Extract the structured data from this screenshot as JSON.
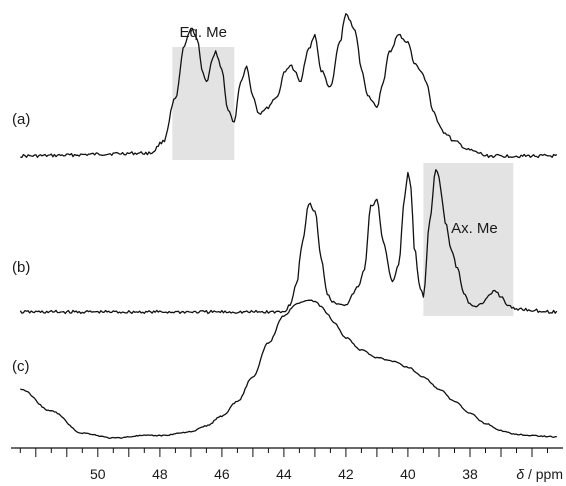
{
  "chart_data": {
    "type": "line",
    "title": "",
    "xlabel": "δ / ppm",
    "xlabel_symbol": "δ",
    "xlabel_unit": "/ ppm",
    "x_reversed": true,
    "xlim": [
      52.8,
      35.0
    ],
    "x_tick_labels": [
      "50",
      "48",
      "46",
      "44",
      "42",
      "40",
      "38"
    ],
    "x_tick_values": [
      50,
      48,
      46,
      44,
      42,
      40,
      38
    ],
    "minor_tick_step": 0.5,
    "grid": false,
    "y_axis_shown": false,
    "colors": {
      "trace": "#111111",
      "highlight": "#e3e3e3",
      "text": "#1a1a1a"
    },
    "highlight_regions": [
      {
        "label": "Eq. Me",
        "x_range": [
          47.6,
          45.6
        ],
        "panel": "a"
      },
      {
        "label": "Ax. Me",
        "x_range": [
          39.5,
          36.6
        ],
        "panel": "b"
      }
    ],
    "series": [
      {
        "name": "(a)",
        "x": [
          52.5,
          48.3,
          47.9,
          47.5,
          47.2,
          47.0,
          46.8,
          46.6,
          46.5,
          46.3,
          46.2,
          46.0,
          45.8,
          45.6,
          45.4,
          45.2,
          45.0,
          44.8,
          44.6,
          44.2,
          44.0,
          43.8,
          43.6,
          43.5,
          43.2,
          43.0,
          42.8,
          42.5,
          42.2,
          42.0,
          41.7,
          41.5,
          41.3,
          41.0,
          40.8,
          40.6,
          40.3,
          40.0,
          39.8,
          39.6,
          39.4,
          39.2,
          39.0,
          38.8,
          38.5,
          38.0,
          37.7,
          37.5,
          37.0,
          35.2
        ],
        "y": [
          0.0,
          0.02,
          0.1,
          0.4,
          0.78,
          0.9,
          0.82,
          0.58,
          0.52,
          0.68,
          0.73,
          0.6,
          0.32,
          0.24,
          0.52,
          0.63,
          0.42,
          0.3,
          0.33,
          0.42,
          0.58,
          0.64,
          0.58,
          0.52,
          0.75,
          0.85,
          0.6,
          0.48,
          0.8,
          1.0,
          0.88,
          0.62,
          0.42,
          0.35,
          0.52,
          0.73,
          0.85,
          0.8,
          0.66,
          0.6,
          0.52,
          0.32,
          0.22,
          0.16,
          0.1,
          0.04,
          0.02,
          0.0,
          0.0,
          0.0
        ]
      },
      {
        "name": "(b)",
        "x": [
          52.5,
          44.0,
          43.8,
          43.6,
          43.4,
          43.2,
          43.0,
          42.8,
          42.6,
          42.4,
          42.0,
          41.6,
          41.4,
          41.2,
          41.0,
          40.8,
          40.5,
          40.3,
          40.1,
          40.0,
          39.9,
          39.8,
          39.6,
          39.5,
          39.3,
          39.1,
          39.0,
          38.9,
          38.8,
          38.6,
          38.4,
          38.2,
          38.0,
          37.8,
          37.6,
          37.4,
          37.2,
          37.0,
          36.8,
          36.6,
          35.2
        ],
        "y": [
          0.0,
          0.0,
          0.05,
          0.18,
          0.45,
          0.7,
          0.65,
          0.35,
          0.12,
          0.06,
          0.05,
          0.16,
          0.28,
          0.68,
          0.72,
          0.45,
          0.2,
          0.3,
          0.75,
          0.9,
          0.8,
          0.42,
          0.15,
          0.1,
          0.58,
          0.92,
          0.88,
          0.72,
          0.58,
          0.4,
          0.28,
          0.12,
          0.05,
          0.04,
          0.05,
          0.1,
          0.14,
          0.1,
          0.05,
          0.02,
          0.0
        ]
      },
      {
        "name": "(c)",
        "x": [
          52.5,
          51.5,
          50.5,
          49.5,
          48.5,
          48.0,
          47.0,
          46.5,
          46.0,
          45.5,
          45.0,
          44.5,
          44.0,
          43.6,
          43.4,
          43.2,
          43.0,
          42.8,
          42.6,
          42.4,
          42.0,
          41.5,
          41.0,
          40.5,
          40.0,
          39.5,
          39.0,
          38.5,
          38.0,
          37.5,
          37.0,
          36.5,
          36.0,
          35.2
        ],
        "y": [
          0.4,
          0.22,
          0.04,
          0.0,
          0.02,
          0.02,
          0.05,
          0.1,
          0.18,
          0.3,
          0.5,
          0.78,
          1.0,
          1.1,
          1.12,
          1.13,
          1.12,
          1.08,
          1.02,
          0.95,
          0.82,
          0.72,
          0.66,
          0.63,
          0.58,
          0.5,
          0.4,
          0.3,
          0.2,
          0.12,
          0.06,
          0.03,
          0.02,
          0.01
        ]
      }
    ]
  }
}
